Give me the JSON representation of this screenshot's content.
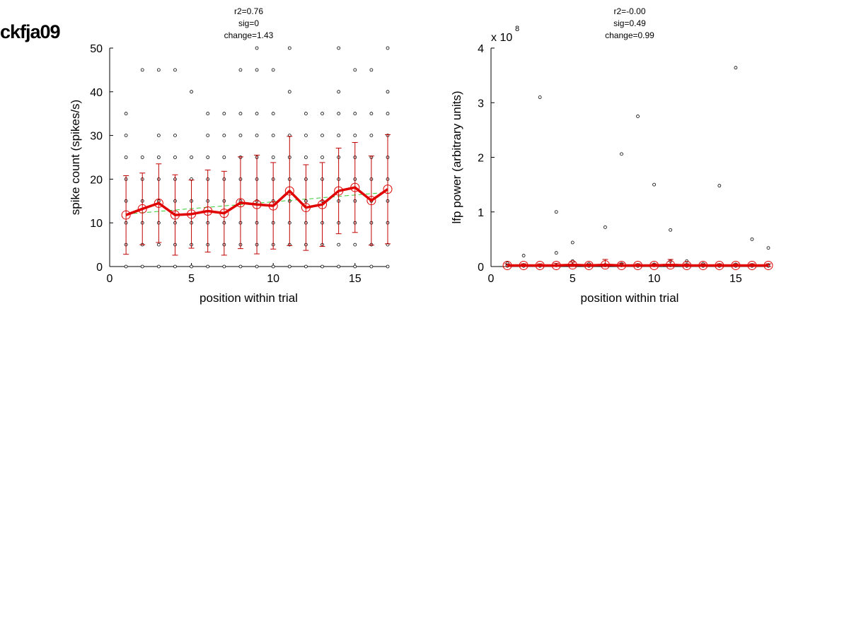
{
  "page_label": "ckfja09",
  "colors": {
    "mean_line": "#e00000",
    "errorbar": "#c00000",
    "fit_line": "#33cc33",
    "points": "#000000"
  },
  "chart_data": [
    {
      "type": "scatter",
      "stats": [
        "r2=0.76",
        "sig=0",
        "change=1.43"
      ],
      "xlabel": "position within trial",
      "ylabel": "spike count (spikes/s)",
      "xlim": [
        0,
        17
      ],
      "ylim": [
        0,
        50
      ],
      "xticks": [
        0,
        5,
        10,
        15
      ],
      "yticks": [
        0,
        10,
        20,
        30,
        40,
        50
      ],
      "grid": false,
      "x": [
        1,
        2,
        3,
        4,
        5,
        6,
        7,
        8,
        9,
        10,
        11,
        12,
        13,
        14,
        15,
        16,
        17
      ],
      "scatter_values": [
        [
          0,
          5,
          10,
          15,
          20,
          25,
          30,
          35
        ],
        [
          0,
          5,
          10,
          15,
          20,
          25,
          45
        ],
        [
          0,
          5,
          10,
          15,
          20,
          25,
          30,
          45
        ],
        [
          0,
          5,
          10,
          15,
          20,
          25,
          30,
          45
        ],
        [
          0,
          5,
          10,
          15,
          20,
          25,
          40
        ],
        [
          0,
          5,
          10,
          15,
          20,
          25,
          30,
          35
        ],
        [
          0,
          5,
          10,
          15,
          20,
          25,
          30,
          35
        ],
        [
          0,
          5,
          10,
          15,
          20,
          25,
          30,
          35,
          45
        ],
        [
          0,
          5,
          10,
          15,
          20,
          25,
          30,
          35,
          45,
          50
        ],
        [
          0,
          5,
          10,
          15,
          20,
          25,
          30,
          35,
          45
        ],
        [
          0,
          5,
          10,
          15,
          20,
          25,
          30,
          40,
          50
        ],
        [
          0,
          5,
          10,
          15,
          20,
          25,
          30,
          35
        ],
        [
          0,
          5,
          10,
          15,
          20,
          25,
          30,
          35
        ],
        [
          0,
          5,
          10,
          15,
          20,
          25,
          30,
          35,
          40,
          50
        ],
        [
          0,
          5,
          10,
          15,
          20,
          25,
          30,
          35,
          45
        ],
        [
          0,
          5,
          10,
          15,
          20,
          25,
          30,
          35,
          45
        ],
        [
          0,
          5,
          10,
          15,
          20,
          25,
          30,
          35,
          40,
          50
        ]
      ],
      "mean": [
        11.8,
        13.2,
        14.5,
        11.8,
        12.0,
        12.7,
        12.2,
        14.6,
        14.2,
        13.9,
        17.3,
        13.5,
        14.2,
        17.3,
        18.1,
        15.1,
        17.7
      ],
      "error": [
        9.0,
        8.2,
        9.0,
        9.2,
        7.8,
        9.4,
        9.6,
        10.5,
        11.3,
        9.9,
        12.5,
        9.8,
        9.6,
        9.8,
        10.3,
        10.2,
        12.5
      ],
      "fit": {
        "x0": 1,
        "y0": 12.0,
        "x1": 17,
        "y1": 17.0
      }
    },
    {
      "type": "scatter",
      "stats": [
        "r2=-0.00",
        "sig=0.49",
        "change=0.99"
      ],
      "xlabel": "position within trial",
      "ylabel": "lfp power (arbitrary units)",
      "exponent": {
        "prefix": "x 10",
        "power": "8"
      },
      "xlim": [
        0,
        17
      ],
      "ylim": [
        0,
        4
      ],
      "xticks": [
        0,
        5,
        10,
        15
      ],
      "yticks": [
        0,
        1,
        2,
        3,
        4
      ],
      "grid": false,
      "x": [
        1,
        2,
        3,
        4,
        5,
        6,
        7,
        8,
        9,
        10,
        11,
        12,
        13,
        14,
        15,
        16,
        17
      ],
      "scatter_values": [
        [
          0.02,
          0.06,
          0.01
        ],
        [
          0.2,
          0.03,
          0.01
        ],
        [
          3.1,
          0.02,
          0.01
        ],
        [
          1.0,
          0.25,
          0.02
        ],
        [
          0.44,
          0.1,
          0.03
        ],
        [
          0.05,
          0.02,
          0.01
        ],
        [
          0.72,
          0.03,
          0.02
        ],
        [
          2.06,
          0.05,
          0.02
        ],
        [
          2.75,
          0.03,
          0.01
        ],
        [
          1.5,
          0.04,
          0.02
        ],
        [
          0.67,
          0.1,
          0.02
        ],
        [
          0.1,
          0.03,
          0.01
        ],
        [
          0.05,
          0.02,
          0.01
        ],
        [
          1.48,
          0.03,
          0.01
        ],
        [
          3.64,
          0.04,
          0.01
        ],
        [
          0.5,
          0.03,
          0.01
        ],
        [
          0.34,
          0.03,
          0.01
        ]
      ],
      "mean": [
        0.02,
        0.02,
        0.02,
        0.02,
        0.03,
        0.02,
        0.03,
        0.02,
        0.02,
        0.02,
        0.03,
        0.02,
        0.02,
        0.02,
        0.02,
        0.02,
        0.02
      ],
      "error": [
        0.03,
        0.03,
        0.03,
        0.04,
        0.05,
        0.03,
        0.1,
        0.04,
        0.03,
        0.03,
        0.1,
        0.03,
        0.03,
        0.03,
        0.03,
        0.03,
        0.03
      ],
      "fit": {
        "x0": 1,
        "y0": 0.02,
        "x1": 17,
        "y1": 0.02
      }
    }
  ]
}
